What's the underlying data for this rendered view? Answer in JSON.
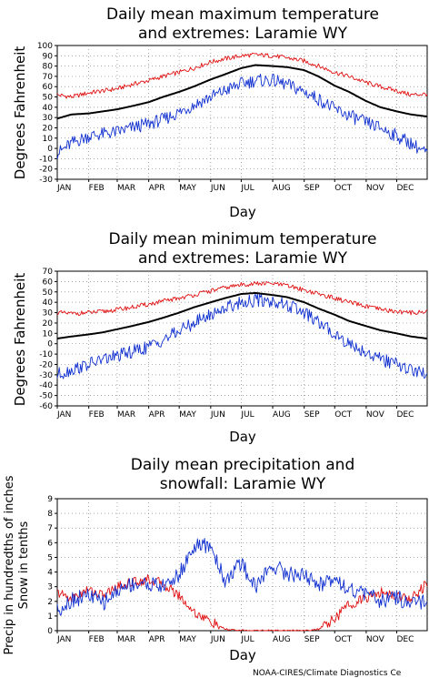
{
  "credit": "NOAA-CIRES/Climate Diagnostics Ce",
  "colors": {
    "max": "#e01010",
    "min": "#1030d0",
    "mean": "#000000",
    "grid": "#888888"
  },
  "chart_data": [
    {
      "type": "line",
      "title_lines": [
        "Daily mean maximum temperature",
        "and extremes: Laramie WY"
      ],
      "xlabel": "Day",
      "ylabel": "Degrees Fahrenheit",
      "months": [
        "JAN",
        "FEB",
        "MAR",
        "APR",
        "MAY",
        "JUN",
        "JUL",
        "AUG",
        "SEP",
        "OCT",
        "NOV",
        "DEC"
      ],
      "ylim": [
        -30,
        100
      ],
      "yticks": [
        -30,
        -20,
        -10,
        0,
        10,
        20,
        30,
        40,
        50,
        60,
        70,
        80,
        90,
        100
      ],
      "grid": true,
      "series": [
        {
          "role": "max",
          "day": [
            1,
            15,
            32,
            46,
            60,
            74,
            91,
            105,
            121,
            135,
            152,
            166,
            182,
            196,
            213,
            227,
            244,
            258,
            274,
            288,
            305,
            319,
            335,
            349,
            365
          ],
          "value": [
            52,
            50,
            54,
            56,
            58,
            62,
            66,
            70,
            74,
            78,
            84,
            87,
            90,
            91,
            90,
            88,
            85,
            80,
            74,
            70,
            64,
            60,
            56,
            52,
            53
          ]
        },
        {
          "role": "mean",
          "day": [
            1,
            15,
            32,
            46,
            60,
            74,
            91,
            105,
            121,
            135,
            152,
            166,
            182,
            196,
            213,
            227,
            244,
            258,
            274,
            288,
            305,
            319,
            335,
            349,
            365
          ],
          "value": [
            29,
            33,
            34,
            36,
            38,
            41,
            45,
            50,
            55,
            60,
            67,
            72,
            78,
            81,
            80,
            79,
            76,
            70,
            61,
            55,
            46,
            40,
            36,
            33,
            31
          ]
        },
        {
          "role": "min",
          "day": [
            1,
            15,
            32,
            46,
            60,
            74,
            91,
            105,
            121,
            135,
            152,
            166,
            182,
            196,
            213,
            227,
            244,
            258,
            274,
            288,
            305,
            319,
            335,
            349,
            365
          ],
          "value": [
            -5,
            5,
            12,
            14,
            16,
            20,
            24,
            28,
            35,
            42,
            50,
            56,
            63,
            66,
            66,
            62,
            55,
            48,
            38,
            32,
            25,
            20,
            12,
            5,
            -5
          ]
        }
      ]
    },
    {
      "type": "line",
      "title_lines": [
        "Daily mean minimum temperature",
        "and extremes: Laramie WY"
      ],
      "xlabel": "Day",
      "ylabel": "Degrees Fahrenheit",
      "months": [
        "JAN",
        "FEB",
        "MAR",
        "APR",
        "MAY",
        "JUN",
        "JUL",
        "AUG",
        "SEP",
        "OCT",
        "NOV",
        "DEC"
      ],
      "ylim": [
        -60,
        70
      ],
      "yticks": [
        -60,
        -50,
        -40,
        -30,
        -20,
        -10,
        0,
        10,
        20,
        30,
        40,
        50,
        60,
        70
      ],
      "grid": true,
      "series": [
        {
          "role": "max",
          "day": [
            1,
            15,
            32,
            46,
            60,
            74,
            91,
            105,
            121,
            135,
            152,
            166,
            182,
            196,
            213,
            227,
            244,
            258,
            274,
            288,
            305,
            319,
            335,
            349,
            365
          ],
          "value": [
            30,
            29,
            30,
            31,
            33,
            35,
            38,
            41,
            44,
            47,
            51,
            54,
            57,
            58,
            58,
            56,
            52,
            48,
            44,
            40,
            36,
            33,
            31,
            30,
            31
          ]
        },
        {
          "role": "mean",
          "day": [
            1,
            15,
            32,
            46,
            60,
            74,
            91,
            105,
            121,
            135,
            152,
            166,
            182,
            196,
            213,
            227,
            244,
            258,
            274,
            288,
            305,
            319,
            335,
            349,
            365
          ],
          "value": [
            5,
            7,
            9,
            11,
            14,
            17,
            21,
            25,
            30,
            35,
            40,
            44,
            48,
            49,
            47,
            45,
            40,
            34,
            28,
            22,
            17,
            13,
            10,
            7,
            5
          ]
        },
        {
          "role": "min",
          "day": [
            1,
            15,
            32,
            46,
            60,
            74,
            91,
            105,
            121,
            135,
            152,
            166,
            182,
            196,
            213,
            227,
            244,
            258,
            274,
            288,
            305,
            319,
            335,
            349,
            365
          ],
          "value": [
            -30,
            -25,
            -20,
            -15,
            -12,
            -8,
            -3,
            4,
            12,
            20,
            28,
            35,
            40,
            42,
            41,
            37,
            30,
            20,
            10,
            0,
            -8,
            -15,
            -20,
            -25,
            -30
          ]
        }
      ]
    },
    {
      "type": "line",
      "title_lines": [
        "Daily mean precipitation and",
        "snowfall: Laramie WY"
      ],
      "xlabel": "Day",
      "ylabel_lines": [
        "Precip in hundredths of inches",
        "Snow in tenths"
      ],
      "months": [
        "JAN",
        "FEB",
        "MAR",
        "APR",
        "MAY",
        "JUN",
        "JUL",
        "AUG",
        "SEP",
        "OCT",
        "NOV",
        "DEC"
      ],
      "ylim": [
        0,
        9
      ],
      "yticks": [
        0,
        1,
        2,
        3,
        4,
        5,
        6,
        7,
        8,
        9
      ],
      "grid": true,
      "series": [
        {
          "role": "snow",
          "day": [
            1,
            15,
            32,
            46,
            60,
            74,
            91,
            105,
            121,
            135,
            152,
            166,
            182,
            196,
            213,
            227,
            244,
            258,
            274,
            288,
            305,
            319,
            335,
            349,
            365
          ],
          "value": [
            2.6,
            2.2,
            2.8,
            2.4,
            3.0,
            3.3,
            3.5,
            3.2,
            2.4,
            1.3,
            0.6,
            0.1,
            0.0,
            0.0,
            0.0,
            0.0,
            0.0,
            0.1,
            0.8,
            1.8,
            2.2,
            2.6,
            2.4,
            2.2,
            3.2
          ]
        },
        {
          "role": "precip",
          "day": [
            1,
            15,
            32,
            46,
            60,
            74,
            91,
            105,
            121,
            135,
            152,
            166,
            182,
            196,
            213,
            227,
            244,
            258,
            274,
            288,
            305,
            319,
            335,
            349,
            365
          ],
          "value": [
            1.4,
            2.1,
            2.4,
            1.9,
            2.7,
            3.2,
            3.2,
            3.0,
            3.8,
            5.7,
            5.8,
            3.4,
            4.6,
            3.0,
            4.5,
            3.9,
            3.8,
            3.1,
            3.7,
            2.8,
            2.5,
            2.0,
            2.3,
            1.7,
            2.0
          ]
        }
      ]
    }
  ]
}
